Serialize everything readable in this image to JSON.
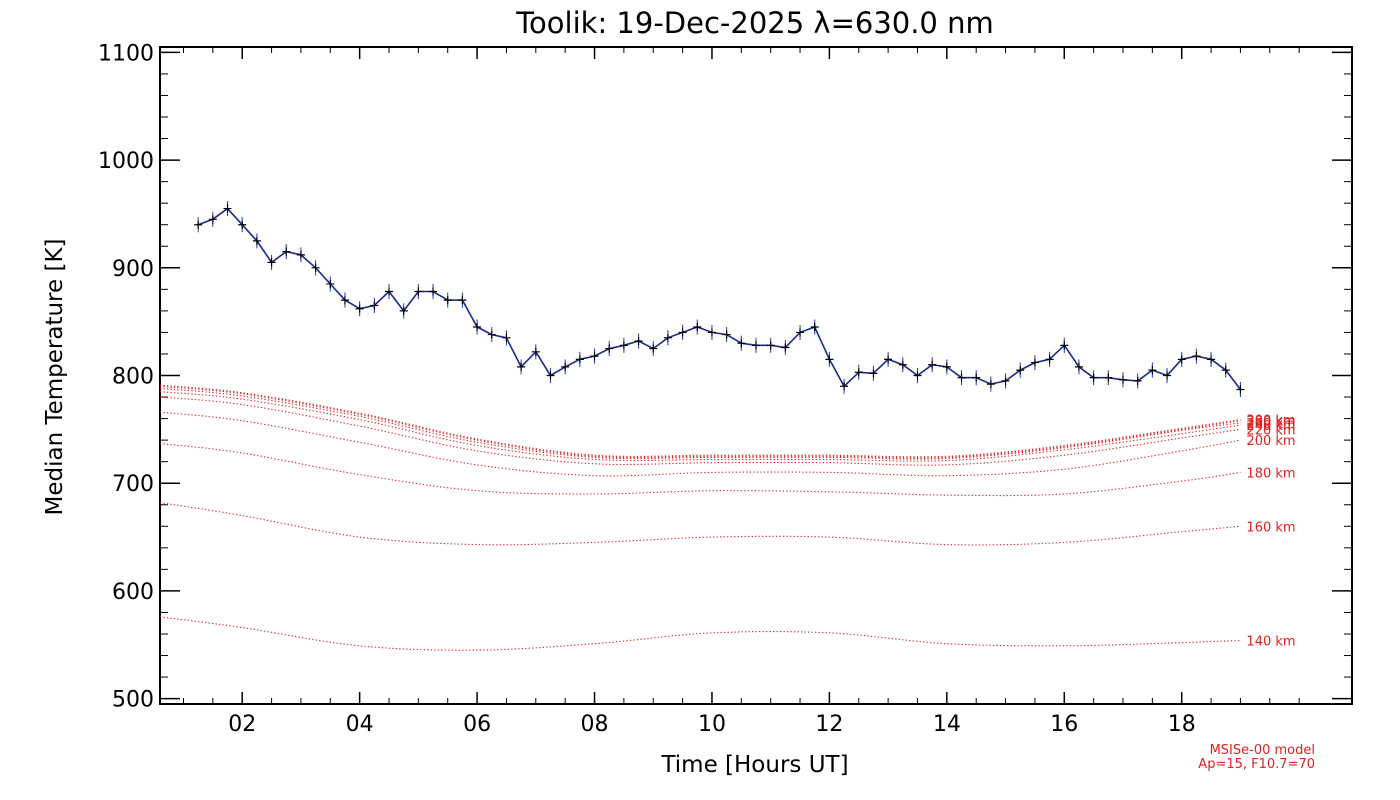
{
  "chart_data": {
    "type": "line",
    "title": "Toolik: 19-Dec-2025 λ=630.0 nm",
    "xlabel": "Time [Hours UT]",
    "ylabel": "Median Temperature [K]",
    "xlim": [
      0.6,
      20.9
    ],
    "ylim": [
      495,
      1105
    ],
    "x_ticks": [
      2,
      4,
      6,
      8,
      10,
      12,
      14,
      16,
      18
    ],
    "x_tick_labels": [
      "02",
      "04",
      "06",
      "08",
      "10",
      "12",
      "14",
      "16",
      "18"
    ],
    "y_ticks": [
      500,
      600,
      700,
      800,
      900,
      1000,
      1100
    ],
    "y_tick_labels": [
      "500",
      "600",
      "700",
      "800",
      "900",
      "1000",
      "1100"
    ],
    "grid": false,
    "colors": {
      "measurement_line": "#1a2a8a",
      "measurement_marker": "#000000",
      "error_bar": "#2233cc",
      "model": "#dd2222"
    },
    "measurement": {
      "x": [
        1.25,
        1.5,
        1.75,
        2.0,
        2.25,
        2.5,
        2.75,
        3.0,
        3.25,
        3.5,
        3.75,
        4.0,
        4.25,
        4.5,
        4.75,
        5.0,
        5.25,
        5.5,
        5.75,
        6.0,
        6.25,
        6.5,
        6.75,
        7.0,
        7.25,
        7.5,
        7.75,
        8.0,
        8.25,
        8.5,
        8.75,
        9.0,
        9.25,
        9.5,
        9.75,
        10.0,
        10.25,
        10.5,
        10.75,
        11.0,
        11.25,
        11.5,
        11.75,
        12.0,
        12.25,
        12.5,
        12.75,
        13.0,
        13.25,
        13.5,
        13.75,
        14.0,
        14.25,
        14.5,
        14.75,
        15.0,
        15.25,
        15.5,
        15.75,
        16.0,
        16.25,
        16.5,
        16.75,
        17.0,
        17.25,
        17.5,
        17.75,
        18.0,
        18.25,
        18.5,
        18.75,
        19.0
      ],
      "y": [
        940,
        945,
        955,
        940,
        925,
        905,
        915,
        912,
        900,
        885,
        870,
        862,
        865,
        878,
        860,
        878,
        878,
        870,
        870,
        845,
        838,
        835,
        808,
        822,
        800,
        808,
        815,
        818,
        825,
        828,
        832,
        825,
        835,
        840,
        845,
        840,
        838,
        830,
        828,
        828,
        826,
        840,
        845,
        815,
        790,
        803,
        802,
        815,
        810,
        800,
        810,
        808,
        798,
        798,
        792,
        795,
        805,
        812,
        815,
        828,
        808,
        798,
        798,
        796,
        795,
        805,
        800,
        815,
        818,
        815,
        805,
        787
      ],
      "error": 7
    },
    "model_label": "MSISe-00 model",
    "model_params": "Ap=15, F10.7=70",
    "model_series": [
      {
        "name": "140 km",
        "x": [
          0.6,
          2,
          4,
          6,
          8,
          10,
          12,
          14,
          16,
          18,
          19.0
        ],
        "y": [
          576,
          566,
          549,
          545,
          551,
          561,
          561,
          551,
          549,
          552,
          554
        ]
      },
      {
        "name": "160 km",
        "x": [
          0.6,
          2,
          4,
          6,
          8,
          10,
          12,
          14,
          16,
          18,
          19.0
        ],
        "y": [
          682,
          670,
          650,
          643,
          645,
          650,
          650,
          643,
          645,
          655,
          660
        ]
      },
      {
        "name": "180 km",
        "x": [
          0.6,
          2,
          4,
          6,
          8,
          10,
          12,
          14,
          16,
          18,
          19.0
        ],
        "y": [
          737,
          728,
          708,
          693,
          690,
          693,
          692,
          689,
          690,
          702,
          710
        ]
      },
      {
        "name": "200 km",
        "x": [
          0.6,
          2,
          4,
          6,
          8,
          10,
          12,
          14,
          16,
          18,
          19.0
        ],
        "y": [
          766,
          758,
          738,
          717,
          707,
          710,
          710,
          707,
          713,
          730,
          740
        ]
      },
      {
        "name": "220 km",
        "x": [
          0.6,
          2,
          4,
          6,
          8,
          10,
          12,
          14,
          16,
          18,
          19.0
        ],
        "y": [
          780,
          773,
          753,
          730,
          718,
          719,
          719,
          717,
          726,
          742,
          750
        ]
      },
      {
        "name": "240 km",
        "x": [
          0.6,
          2,
          4,
          6,
          8,
          10,
          12,
          14,
          16,
          18,
          19.0
        ],
        "y": [
          785,
          778,
          759,
          735,
          722,
          722,
          722,
          721,
          731,
          746,
          754
        ]
      },
      {
        "name": "260 km",
        "x": [
          0.6,
          2,
          4,
          6,
          8,
          10,
          12,
          14,
          16,
          18,
          19.0
        ],
        "y": [
          788,
          781,
          762,
          738,
          724,
          724,
          724,
          723,
          733,
          749,
          756
        ]
      },
      {
        "name": "280 km",
        "x": [
          0.6,
          2,
          4,
          6,
          8,
          10,
          12,
          14,
          16,
          18,
          19.0
        ],
        "y": [
          790,
          783,
          764,
          740,
          725,
          725,
          725,
          724,
          734,
          750,
          758
        ]
      },
      {
        "name": "300 km",
        "x": [
          0.6,
          2,
          4,
          6,
          8,
          10,
          12,
          14,
          16,
          18,
          19.0
        ],
        "y": [
          791,
          784,
          765,
          741,
          726,
          726,
          726,
          725,
          735,
          751,
          759
        ]
      }
    ]
  }
}
